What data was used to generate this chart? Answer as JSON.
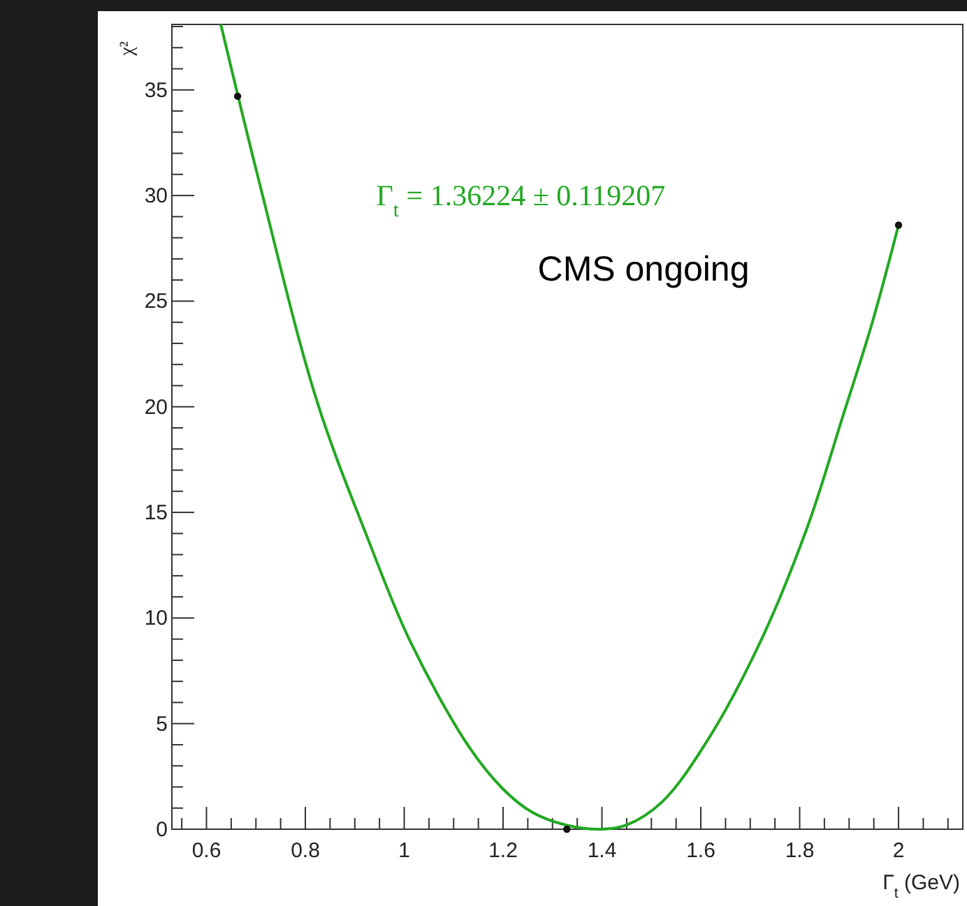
{
  "chart_data": {
    "type": "line",
    "xlabel": "Γ$_{t}$ (GeV)",
    "ylabel": "χ²",
    "annotations": [
      "Γ$_{t}$ = 1.36224 ± 0.119207",
      "CMS ongoing"
    ],
    "series": [
      {
        "color": "#22a822",
        "marker": "none",
        "x": [
          0.629,
          0.705,
          0.823,
          0.924,
          1.012,
          1.131,
          1.2,
          1.259,
          1.327,
          1.4,
          1.45,
          1.522,
          1.616,
          1.723,
          1.817,
          1.888,
          1.947,
          2.0
        ],
        "values": [
          38.1,
          30.8,
          20.3,
          13.9,
          8.9,
          3.9,
          1.9,
          0.8,
          0.2,
          0,
          0.2,
          1.3,
          4.3,
          9.0,
          14.4,
          19.6,
          24.0,
          28.6
        ]
      },
      {
        "type": "scatter",
        "color": "#111111",
        "marker": "circle",
        "x": [
          0.663,
          1.329,
          2.0
        ],
        "values": [
          34.7,
          0,
          28.6
        ]
      }
    ],
    "xlim": [
      0.53,
      2.13
    ],
    "ylim": [
      0,
      38.1
    ],
    "xticks": [
      {
        "value": 0.55,
        "label": null
      },
      0.6,
      {
        "value": 0.65,
        "label": null
      },
      {
        "value": 0.7,
        "label": null
      },
      {
        "value": 0.75,
        "label": null
      },
      0.8,
      {
        "value": 0.85,
        "label": null
      },
      {
        "value": 0.9,
        "label": null
      },
      {
        "value": 0.95,
        "label": null
      },
      1,
      {
        "value": 1.05,
        "label": null
      },
      {
        "value": 1.1,
        "label": null
      },
      {
        "value": 1.15,
        "label": null
      },
      1.2,
      {
        "value": 1.25,
        "label": null
      },
      {
        "value": 1.3,
        "label": null
      },
      {
        "value": 1.35,
        "label": null
      },
      1.4,
      {
        "value": 1.45,
        "label": null
      },
      {
        "value": 1.5,
        "label": null
      },
      {
        "value": 1.55,
        "label": null
      },
      1.6,
      {
        "value": 1.65,
        "label": null
      },
      {
        "value": 1.7,
        "label": null
      },
      {
        "value": 1.75,
        "label": null
      },
      1.8,
      {
        "value": 1.85,
        "label": null
      },
      {
        "value": 1.9,
        "label": null
      },
      {
        "value": 1.95,
        "label": null
      },
      2,
      {
        "value": 2.05,
        "label": null
      },
      {
        "value": 2.1,
        "label": null
      }
    ],
    "yticks": [
      0,
      {
        "value": 1,
        "label": null
      },
      {
        "value": 2,
        "label": null
      },
      {
        "value": 3,
        "label": null
      },
      {
        "value": 4,
        "label": null
      },
      5,
      {
        "value": 6,
        "label": null
      },
      {
        "value": 7,
        "label": null
      },
      {
        "value": 8,
        "label": null
      },
      {
        "value": 9,
        "label": null
      },
      10,
      {
        "value": 11,
        "label": null
      },
      {
        "value": 12,
        "label": null
      },
      {
        "value": 13,
        "label": null
      },
      {
        "value": 14,
        "label": null
      },
      15,
      {
        "value": 16,
        "label": null
      },
      {
        "value": 17,
        "label": null
      },
      {
        "value": 18,
        "label": null
      },
      {
        "value": 19,
        "label": null
      },
      20,
      {
        "value": 21,
        "label": null
      },
      {
        "value": 22,
        "label": null
      },
      {
        "value": 23,
        "label": null
      },
      {
        "value": 24,
        "label": null
      },
      25,
      {
        "value": 26,
        "label": null
      },
      {
        "value": 27,
        "label": null
      },
      {
        "value": 28,
        "label": null
      },
      {
        "value": 29,
        "label": null
      },
      30,
      {
        "value": 31,
        "label": null
      },
      {
        "value": 32,
        "label": null
      },
      {
        "value": 33,
        "label": null
      },
      {
        "value": 34,
        "label": null
      },
      35,
      {
        "value": 36,
        "label": null
      },
      {
        "value": 37,
        "label": null
      },
      {
        "value": 38,
        "label": null
      }
    ],
    "grid": false
  }
}
